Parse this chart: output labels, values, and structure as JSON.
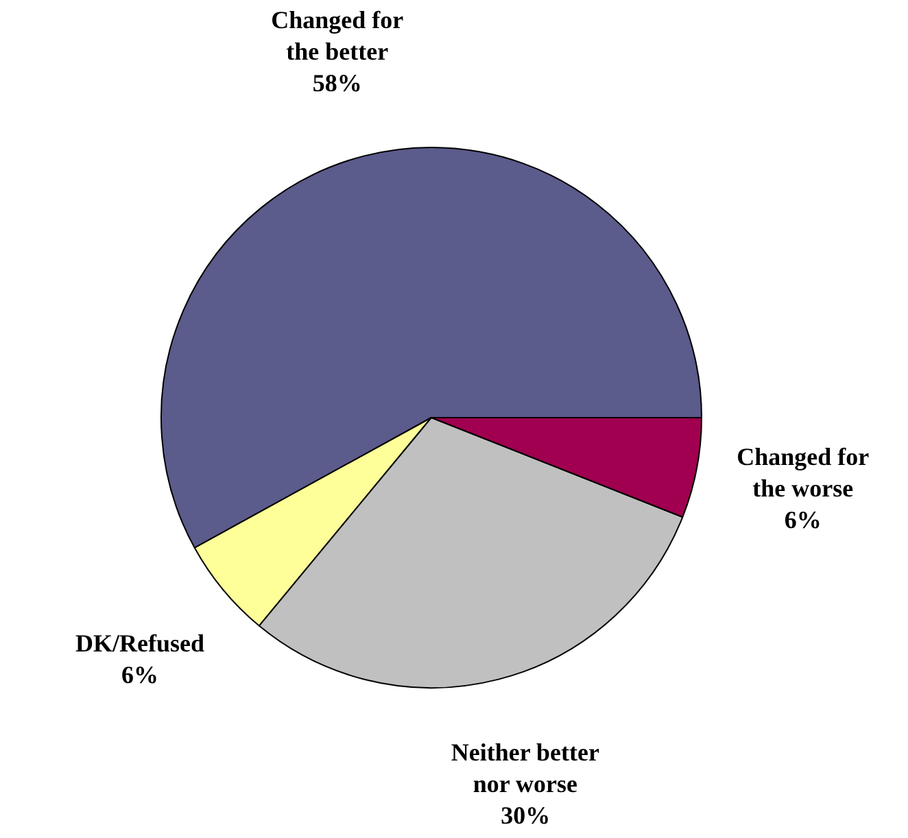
{
  "chart_data": {
    "type": "pie",
    "categories": [
      "Changed for the better",
      "DK/Refused",
      "Neither better nor worse",
      "Changed for the worse"
    ],
    "values": [
      58,
      6,
      30,
      6
    ],
    "value_labels": [
      "58%",
      "6%",
      "30%",
      "6%"
    ],
    "colors": [
      "#5b5b8c",
      "#ffff99",
      "#c0c0c0",
      "#a0004f"
    ]
  }
}
